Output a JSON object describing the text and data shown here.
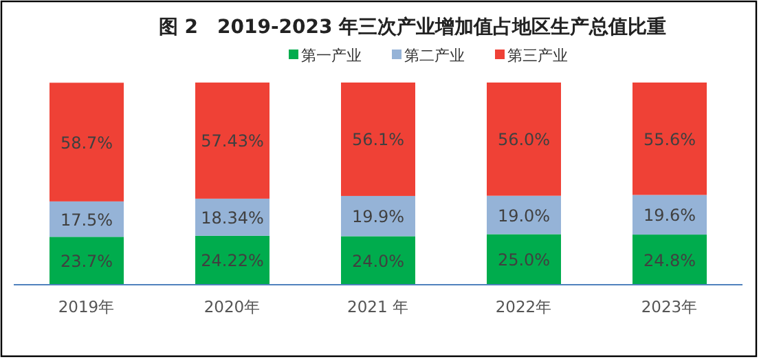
{
  "chart_data": {
    "type": "bar",
    "stacked": true,
    "title": "图 2　2019-2023 年三次产业增加值占地区生产总值比重",
    "categories": [
      "2019年",
      "2020年",
      "2021 年",
      "2022年",
      "2023年"
    ],
    "legend": "top",
    "series": [
      {
        "name": "第一产业",
        "color": "#00ac4d",
        "values": [
          23.7,
          24.22,
          24.0,
          25.0,
          24.8
        ],
        "value_labels": [
          "23.7%",
          "24.22%",
          "24.0%",
          "25.0%",
          "24.8%"
        ]
      },
      {
        "name": "第二产业",
        "color": "#95b3d7",
        "values": [
          17.5,
          18.34,
          19.9,
          19.0,
          19.6
        ],
        "value_labels": [
          "17.5%",
          "18.34%",
          "19.9%",
          "19.0%",
          "19.6%"
        ]
      },
      {
        "name": "第三产业",
        "color": "#ef4136",
        "values": [
          58.7,
          57.43,
          56.1,
          56.0,
          55.6
        ],
        "value_labels": [
          "58.7%",
          "57.43%",
          "56.1%",
          "56.0%",
          "55.6%"
        ]
      }
    ]
  }
}
